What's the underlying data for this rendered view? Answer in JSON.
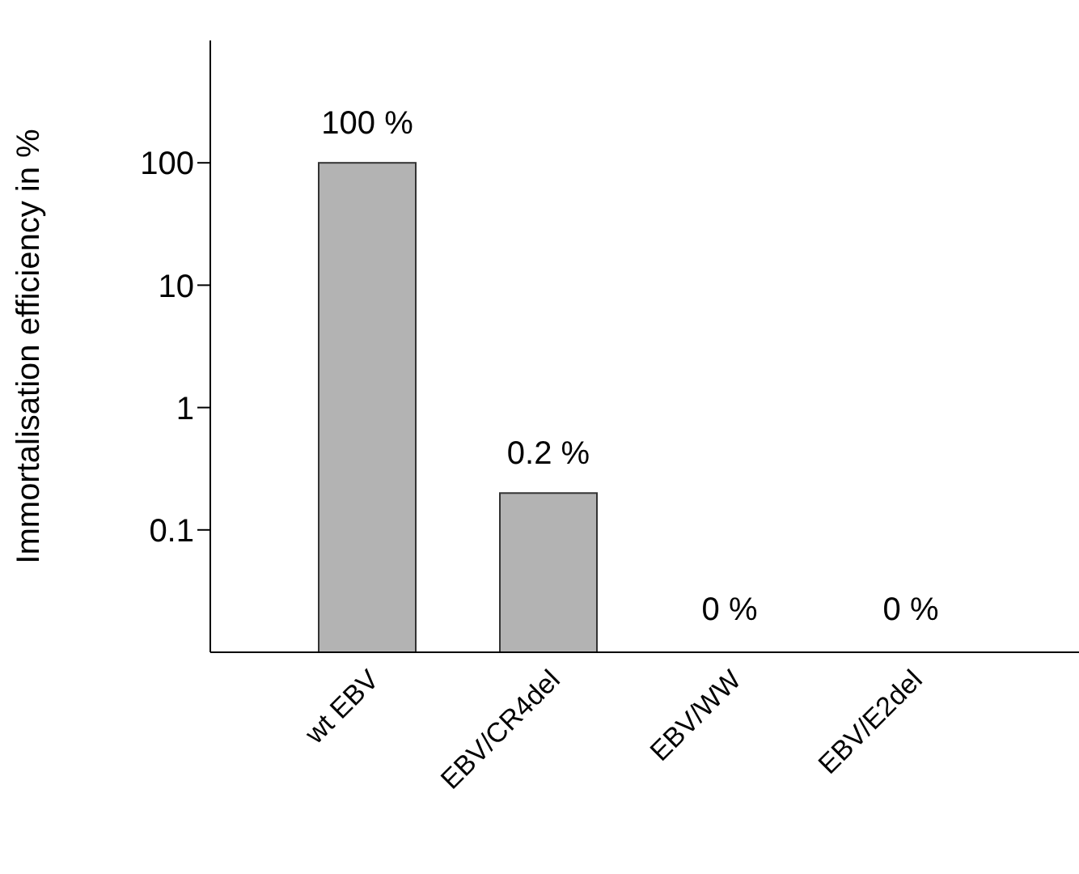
{
  "chart_data": {
    "type": "bar",
    "ylabel": "Immortalisation efficiency in %",
    "categories": [
      "wt EBV",
      "EBV/CR4del",
      "EBV/WW",
      "EBV/E2del"
    ],
    "values": [
      100,
      0.2,
      null,
      null
    ],
    "value_labels": [
      "100 %",
      "0.2 %",
      "0 %",
      "0 %"
    ],
    "color": "#b3b3b3",
    "log": true,
    "ylim": [
      0.01,
      1000
    ],
    "yticks": [
      0.1,
      1,
      10,
      100
    ]
  }
}
